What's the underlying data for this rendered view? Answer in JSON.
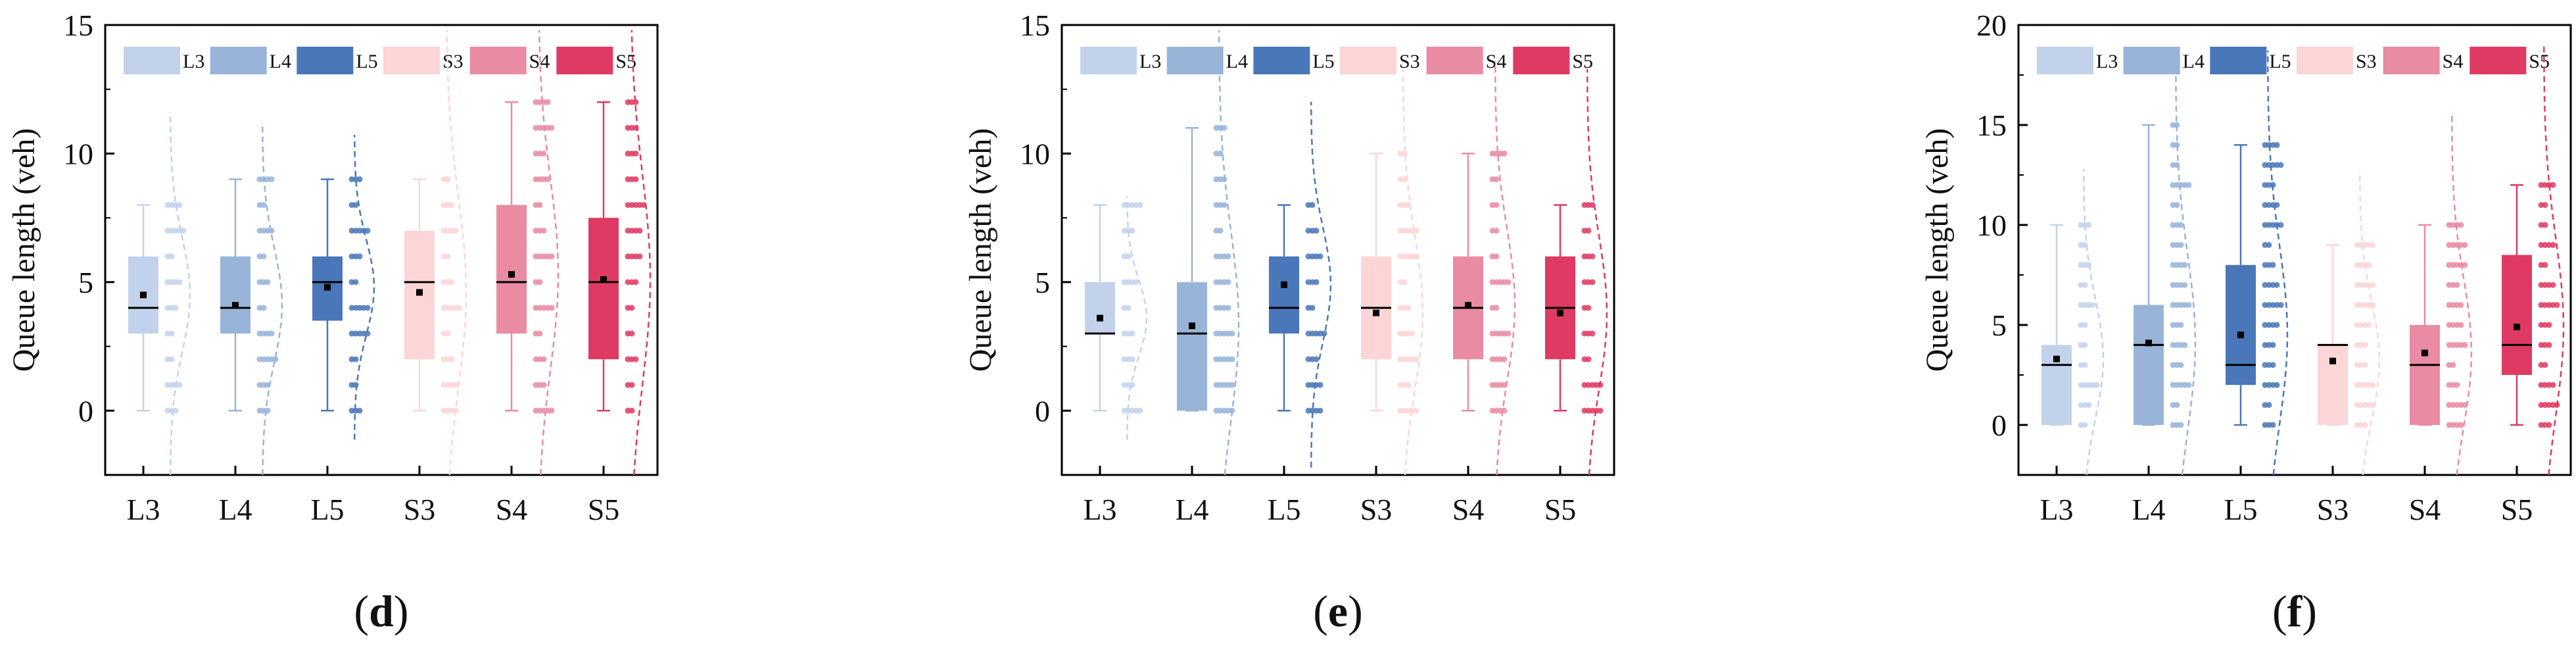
{
  "chart_data": [
    {
      "type": "box",
      "panel": "d",
      "ylabel": "Queue length (veh)",
      "ylim": [
        -2.5,
        15
      ],
      "yticks": [
        0,
        5,
        10,
        15
      ],
      "categories": [
        "L3",
        "L4",
        "L5",
        "S3",
        "S4",
        "S5"
      ],
      "legend": [
        "L3",
        "L4",
        "L5",
        "S3",
        "S4",
        "S5"
      ],
      "boxes": [
        {
          "name": "L3",
          "min": 0,
          "q1": 3,
          "median": 4,
          "q3": 6,
          "max": 8,
          "mean": 4.5
        },
        {
          "name": "L4",
          "min": 0,
          "q1": 3,
          "median": 4,
          "q3": 6,
          "max": 9,
          "mean": 4.1
        },
        {
          "name": "L5",
          "min": 0,
          "q1": 3.5,
          "median": 5,
          "q3": 6,
          "max": 9,
          "mean": 4.8
        },
        {
          "name": "S3",
          "min": 0,
          "q1": 2,
          "median": 5,
          "q3": 7,
          "max": 9,
          "mean": 4.6
        },
        {
          "name": "S4",
          "min": 0,
          "q1": 3,
          "median": 5,
          "q3": 8,
          "max": 12,
          "mean": 5.3
        },
        {
          "name": "S5",
          "min": 0,
          "q1": 2,
          "median": 5,
          "q3": 7.5,
          "max": 12,
          "mean": 5.1
        }
      ]
    },
    {
      "type": "box",
      "panel": "e",
      "ylabel": "Queue length (veh)",
      "ylim": [
        -2.5,
        15
      ],
      "yticks": [
        0,
        5,
        10,
        15
      ],
      "categories": [
        "L3",
        "L4",
        "L5",
        "S3",
        "S4",
        "S5"
      ],
      "legend": [
        "L3",
        "L4",
        "L5",
        "S3",
        "S4",
        "S5"
      ],
      "boxes": [
        {
          "name": "L3",
          "min": 0,
          "q1": 3,
          "median": 3,
          "q3": 5,
          "max": 8,
          "mean": 3.6
        },
        {
          "name": "L4",
          "min": 0,
          "q1": 0,
          "median": 3,
          "q3": 5,
          "max": 11,
          "mean": 3.3
        },
        {
          "name": "L5",
          "min": 0,
          "q1": 3,
          "median": 4,
          "q3": 6,
          "max": 8,
          "mean": 4.9
        },
        {
          "name": "S3",
          "min": 0,
          "q1": 2,
          "median": 4,
          "q3": 6,
          "max": 10,
          "mean": 3.8
        },
        {
          "name": "S4",
          "min": 0,
          "q1": 2,
          "median": 4,
          "q3": 6,
          "max": 10,
          "mean": 4.1
        },
        {
          "name": "S5",
          "min": 0,
          "q1": 2,
          "median": 4,
          "q3": 6,
          "max": 8,
          "mean": 3.8
        }
      ]
    },
    {
      "type": "box",
      "panel": "f",
      "ylabel": "Queue length (veh)",
      "ylim": [
        -2.5,
        20
      ],
      "yticks": [
        0,
        5,
        10,
        15,
        20
      ],
      "categories": [
        "L3",
        "L4",
        "L5",
        "S3",
        "S4",
        "S5"
      ],
      "legend": [
        "L3",
        "L4",
        "L5",
        "S3",
        "S4",
        "S5"
      ],
      "boxes": [
        {
          "name": "L3",
          "min": 0,
          "q1": 0,
          "median": 3,
          "q3": 4,
          "max": 10,
          "mean": 3.3
        },
        {
          "name": "L4",
          "min": 0,
          "q1": 0,
          "median": 4,
          "q3": 6,
          "max": 15,
          "mean": 4.1
        },
        {
          "name": "L5",
          "min": 0,
          "q1": 2,
          "median": 3,
          "q3": 8,
          "max": 14,
          "mean": 4.5
        },
        {
          "name": "S3",
          "min": 0,
          "q1": 0,
          "median": 4,
          "q3": 4,
          "max": 9,
          "mean": 3.2
        },
        {
          "name": "S4",
          "min": 0,
          "q1": 0,
          "median": 3,
          "q3": 5,
          "max": 10,
          "mean": 3.6
        },
        {
          "name": "S5",
          "min": 0,
          "q1": 2.5,
          "median": 4,
          "q3": 8.5,
          "max": 12,
          "mean": 4.9
        }
      ]
    }
  ],
  "colors": {
    "L3": "#c3d2eb",
    "L4": "#98b4d8",
    "L5": "#4a77b9",
    "S3": "#fcd5d6",
    "S4": "#e98ba3",
    "S5": "#df3a63"
  },
  "panel_labels": [
    "d",
    "e",
    "f"
  ]
}
